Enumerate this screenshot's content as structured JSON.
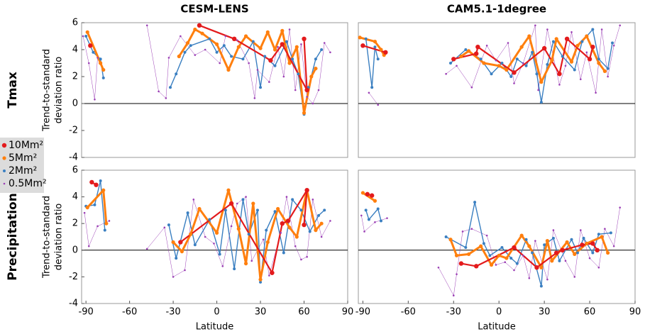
{
  "chart_data": [
    {
      "type": "scatter",
      "title": "CESM-LENS",
      "row_label": "Tmax",
      "ylabel": [
        "Trend-to-standard",
        "deviation ratio"
      ],
      "xlim": [
        -93,
        90
      ],
      "ylim": [
        -4,
        6
      ],
      "yticks": [
        -4,
        -2,
        0,
        2,
        4,
        6
      ],
      "series": [
        {
          "name": "10Mm²",
          "color": "#e31a1c",
          "x": [
            -87,
            null,
            -12,
            12,
            37,
            45,
            62,
            60
          ],
          "values": [
            4.3,
            null,
            5.8,
            4.8,
            3.2,
            4.4,
            1.0,
            4.8
          ]
        },
        {
          "name": "5Mm²",
          "color": "#ff7f0e",
          "x": [
            -89,
            -80,
            -78,
            null,
            -26,
            -20,
            -15,
            -10,
            0,
            8,
            15,
            20,
            30,
            35,
            40,
            45,
            50,
            55,
            60,
            65,
            68
          ],
          "values": [
            5.3,
            3.0,
            2.5,
            null,
            3.5,
            4.5,
            5.5,
            5.2,
            4.4,
            2.5,
            4.2,
            5.0,
            4.1,
            5.3,
            4.0,
            5.4,
            3.0,
            4.2,
            -0.7,
            2.0,
            2.6
          ]
        },
        {
          "name": "2Mm²",
          "color": "#3a7fc1",
          "x": [
            -90,
            -85,
            -80,
            -78,
            null,
            -32,
            -28,
            -22,
            -18,
            -5,
            0,
            5,
            10,
            18,
            25,
            30,
            33,
            40,
            48,
            52,
            56,
            60,
            63,
            68,
            72
          ],
          "values": [
            5.0,
            3.8,
            3.3,
            1.9,
            null,
            1.2,
            2.2,
            3.8,
            4.3,
            4.8,
            3.8,
            4.3,
            3.5,
            3.3,
            4.6,
            1.2,
            3.5,
            2.8,
            4.6,
            3.3,
            2.2,
            -0.8,
            1.2,
            3.3,
            4.0
          ]
        },
        {
          "name": "0.5Mm²",
          "color": "#9b3fb5",
          "x": [
            -92,
            -88,
            -84,
            -82,
            null,
            -48,
            -40,
            -35,
            -33,
            -25,
            -15,
            -8,
            2,
            6,
            14,
            22,
            26,
            28,
            36,
            42,
            46,
            50,
            54,
            58,
            62,
            66,
            70,
            74,
            78
          ],
          "values": [
            5.0,
            3.0,
            0.3,
            3.4,
            null,
            5.8,
            0.9,
            0.4,
            3.4,
            5.0,
            3.6,
            4.0,
            3.0,
            5.0,
            4.7,
            3.0,
            0.4,
            2.5,
            1.6,
            4.2,
            2.0,
            5.5,
            1.0,
            4.4,
            0.5,
            0.0,
            1.0,
            4.5,
            3.8
          ]
        }
      ]
    },
    {
      "type": "scatter",
      "title": "CAM5.1-1degree",
      "xlim": [
        -93,
        90
      ],
      "ylim": [
        -4,
        6
      ],
      "series": [
        {
          "color": "#e31a1c",
          "x": [
            -90,
            -75,
            null,
            -30,
            -15,
            -14,
            10,
            30,
            40,
            45,
            60,
            62
          ],
          "values": [
            4.3,
            3.8,
            null,
            3.3,
            3.7,
            4.2,
            2.3,
            4.1,
            2.2,
            4.8,
            3.3,
            4.2
          ]
        },
        {
          "color": "#ff7f0e",
          "x": [
            -92,
            -82,
            -78,
            -76,
            null,
            -25,
            -20,
            -10,
            0,
            5,
            15,
            20,
            28,
            35,
            38,
            48,
            52,
            58,
            66,
            70
          ],
          "values": [
            4.9,
            4.6,
            4.0,
            3.6,
            null,
            3.5,
            3.9,
            3.0,
            2.8,
            2.5,
            4.2,
            5.0,
            1.6,
            3.2,
            4.8,
            3.1,
            4.3,
            5.0,
            3.0,
            2.4
          ]
        },
        {
          "color": "#3a7fc1",
          "x": [
            -88,
            -84,
            -82,
            -80,
            null,
            -32,
            -22,
            -12,
            -5,
            2,
            8,
            12,
            18,
            22,
            25,
            28,
            32,
            36,
            42,
            50,
            55,
            62,
            66,
            72,
            75
          ],
          "values": [
            4.8,
            1.2,
            4.2,
            3.3,
            null,
            3.0,
            4.0,
            3.3,
            2.2,
            3.0,
            2.0,
            3.3,
            2.8,
            3.8,
            2.2,
            0.1,
            2.9,
            4.6,
            3.5,
            2.5,
            4.6,
            5.5,
            3.3,
            2.6,
            4.5
          ]
        },
        {
          "color": "#9b3fb5",
          "x": [
            -86,
            -80,
            null,
            -35,
            -28,
            -18,
            -8,
            -2,
            6,
            10,
            16,
            24,
            26,
            32,
            40,
            44,
            48,
            54,
            58,
            64,
            68,
            72,
            76,
            80
          ],
          "values": [
            0.8,
            -0.1,
            null,
            2.2,
            2.8,
            1.2,
            4.3,
            3.2,
            4.5,
            1.5,
            3.0,
            5.8,
            1.0,
            5.5,
            1.4,
            2.8,
            5.3,
            1.8,
            3.8,
            0.8,
            5.5,
            2.0,
            4.3,
            5.8
          ]
        }
      ]
    },
    {
      "type": "scatter",
      "row_label": "Precipitation",
      "ylabel": [
        "Trend-to-standard",
        "deviation ratio"
      ],
      "xlabel": "Latitude",
      "xlim": [
        -93,
        90
      ],
      "ylim": [
        -4,
        6
      ],
      "yticks": [
        -4,
        -2,
        0,
        2,
        4,
        6
      ],
      "xticks": [
        -90,
        -60,
        -30,
        0,
        30,
        60,
        90
      ],
      "series": [
        {
          "color": "#e31a1c",
          "x": [
            -86,
            -83,
            null,
            -25,
            10,
            38,
            45,
            49,
            62,
            60
          ],
          "values": [
            5.1,
            4.9,
            null,
            0.6,
            3.5,
            -1.7,
            2.0,
            2.2,
            4.5,
            1.9
          ]
        },
        {
          "color": "#ff7f0e",
          "x": [
            -89,
            -78,
            -76,
            null,
            -30,
            -24,
            -18,
            -12,
            0,
            8,
            15,
            20,
            25,
            30,
            35,
            42,
            50,
            55,
            62,
            68,
            72
          ],
          "values": [
            3.2,
            4.5,
            2.0,
            null,
            0.6,
            -0.1,
            1.2,
            3.1,
            1.3,
            4.5,
            1.6,
            -1.0,
            3.5,
            -2.2,
            0.6,
            3.1,
            1.7,
            1.0,
            4.5,
            1.5,
            2.0
          ]
        },
        {
          "color": "#3a7fc1",
          "x": [
            -90,
            -84,
            -80,
            -77,
            null,
            -33,
            -28,
            -20,
            -15,
            -5,
            2,
            6,
            12,
            18,
            22,
            28,
            30,
            34,
            40,
            46,
            52,
            58,
            64,
            70,
            74
          ],
          "values": [
            3.3,
            3.4,
            5.2,
            1.5,
            null,
            1.9,
            -0.6,
            2.8,
            0.4,
            2.3,
            -0.3,
            3.0,
            -1.4,
            3.8,
            1.2,
            3.0,
            -2.4,
            1.5,
            2.9,
            -0.2,
            3.8,
            3.0,
            1.4,
            2.6,
            3.0
          ]
        },
        {
          "color": "#9b3fb5",
          "x": [
            -91,
            -88,
            -82,
            -74,
            null,
            -48,
            -36,
            -30,
            -22,
            -16,
            -8,
            -2,
            4,
            10,
            14,
            20,
            24,
            32,
            36,
            44,
            48,
            54,
            58,
            62,
            66,
            72,
            78
          ],
          "values": [
            2.8,
            0.3,
            1.8,
            2.2,
            null,
            0.1,
            1.7,
            -2.0,
            -1.5,
            3.8,
            1.0,
            0.5,
            -1.2,
            1.8,
            3.5,
            4.0,
            -0.8,
            0.8,
            -1.9,
            1.3,
            4.0,
            0.3,
            -0.7,
            -0.5,
            3.8,
            1.0,
            2.2
          ]
        }
      ]
    },
    {
      "type": "scatter",
      "xlabel": "Latitude",
      "xlim": [
        -93,
        90
      ],
      "ylim": [
        -4,
        6
      ],
      "xticks": [
        -90,
        -60,
        -30,
        0,
        30,
        60,
        90
      ],
      "series": [
        {
          "color": "#e31a1c",
          "x": [
            -87,
            -84,
            null,
            -25,
            -15,
            10,
            25,
            38,
            42,
            55,
            62,
            65
          ],
          "values": [
            4.2,
            4.1,
            null,
            -1.0,
            -1.2,
            0.2,
            -1.3,
            -0.2,
            0.0,
            0.4,
            0.5,
            0.0
          ]
        },
        {
          "color": "#ff7f0e",
          "x": [
            -90,
            -82,
            null,
            -32,
            -28,
            -20,
            -12,
            -5,
            0,
            5,
            15,
            20,
            28,
            32,
            35,
            45,
            50,
            58,
            68,
            72
          ],
          "values": [
            4.3,
            3.7,
            null,
            0.8,
            -0.4,
            -0.3,
            0.3,
            -1.1,
            -0.4,
            -0.6,
            1.1,
            0.3,
            -1.3,
            0.7,
            -0.8,
            0.6,
            -0.3,
            0.5,
            1.0,
            -0.2
          ]
        },
        {
          "color": "#3a7fc1",
          "x": [
            -88,
            -86,
            -80,
            -78,
            null,
            -35,
            -22,
            -16,
            -10,
            -6,
            2,
            8,
            12,
            18,
            22,
            28,
            30,
            36,
            40,
            48,
            52,
            56,
            62,
            66,
            74
          ],
          "values": [
            3.0,
            2.3,
            3.1,
            2.2,
            null,
            1.0,
            0.2,
            3.6,
            0.5,
            -0.4,
            0.2,
            -0.6,
            -1.0,
            0.8,
            -0.2,
            -2.7,
            0.4,
            0.9,
            -0.8,
            0.8,
            -0.2,
            0.9,
            -0.2,
            1.2,
            1.3
          ]
        },
        {
          "color": "#9b3fb5",
          "x": [
            -91,
            -89,
            -82,
            -74,
            null,
            -40,
            -30,
            -28,
            -24,
            -18,
            -8,
            -2,
            4,
            10,
            16,
            20,
            24,
            32,
            36,
            44,
            50,
            54,
            60,
            66,
            70,
            76,
            80
          ],
          "values": [
            2.6,
            1.4,
            2.1,
            2.4,
            null,
            -1.3,
            -3.4,
            -1.8,
            1.4,
            1.6,
            1.1,
            -1.1,
            -0.9,
            -1.5,
            -0.4,
            -2.1,
            0.7,
            -2.2,
            1.5,
            -0.8,
            -2.0,
            1.5,
            -0.6,
            -1.3,
            1.6,
            0.3,
            3.2
          ]
        }
      ]
    }
  ]
}
